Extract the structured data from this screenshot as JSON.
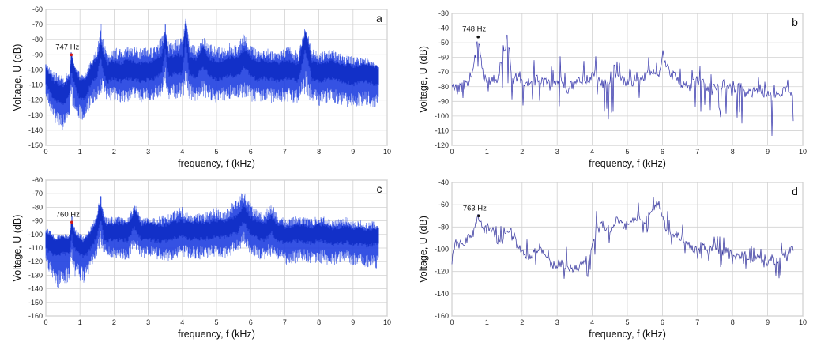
{
  "chart_data": [
    {
      "id": "a",
      "type": "line",
      "panel_letter": "a",
      "xlabel": "frequency, f (kHz)",
      "ylabel": "Voltage, U (dB)",
      "xlim": [
        0,
        10
      ],
      "ylim": [
        -150,
        -60
      ],
      "xticks": [
        0,
        1,
        2,
        3,
        4,
        5,
        6,
        7,
        8,
        9,
        10
      ],
      "yticks": [
        -60,
        -70,
        -80,
        -90,
        -100,
        -110,
        -120,
        -130,
        -140,
        -150
      ],
      "grid": true,
      "color": "#1f3fe0",
      "style": "dense",
      "x_max_data": 9.75,
      "annotation": {
        "text": "747 Hz",
        "x": 0.747,
        "y": -90,
        "marker_color": "#d01818"
      },
      "series": [
        {
          "x": [
            0,
            0.1,
            0.2,
            0.3,
            0.4,
            0.5,
            0.6,
            0.7,
            0.747,
            0.8,
            0.9,
            1.0,
            1.1,
            1.2,
            1.3,
            1.4,
            1.5,
            1.6,
            1.7,
            1.8,
            1.9,
            2.0,
            2.2,
            2.4,
            2.6,
            2.8,
            3.0,
            3.2,
            3.4,
            3.5,
            3.6,
            3.8,
            4.0,
            4.1,
            4.2,
            4.4,
            4.6,
            4.8,
            5.0,
            5.2,
            5.4,
            5.6,
            5.8,
            6.0,
            6.2,
            6.4,
            6.6,
            6.8,
            7.0,
            7.2,
            7.4,
            7.6,
            7.8,
            8.0,
            8.2,
            8.4,
            8.6,
            8.8,
            9.0,
            9.2,
            9.4,
            9.6,
            9.75
          ],
          "y": [
            -102,
            -108,
            -112,
            -114,
            -115,
            -116,
            -114,
            -110,
            -92,
            -100,
            -108,
            -112,
            -113,
            -110,
            -104,
            -100,
            -98,
            -86,
            -96,
            -102,
            -100,
            -100,
            -101,
            -99,
            -100,
            -101,
            -100,
            -99,
            -96,
            -80,
            -98,
            -95,
            -96,
            -73,
            -96,
            -99,
            -91,
            -98,
            -100,
            -99,
            -97,
            -98,
            -92,
            -97,
            -100,
            -99,
            -100,
            -101,
            -99,
            -100,
            -101,
            -80,
            -100,
            -101,
            -100,
            -99,
            -101,
            -102,
            -103,
            -102,
            -101,
            -103,
            -104
          ],
          "low": [
            -118,
            -125,
            -132,
            -138,
            -140,
            -140,
            -136,
            -130,
            -120,
            -125,
            -130,
            -133,
            -134,
            -130,
            -125,
            -122,
            -120,
            -115,
            -118,
            -120,
            -121,
            -120,
            -122,
            -121,
            -120,
            -122,
            -121,
            -120,
            -118,
            -112,
            -120,
            -119,
            -118,
            -115,
            -119,
            -121,
            -118,
            -120,
            -122,
            -121,
            -119,
            -120,
            -118,
            -121,
            -122,
            -121,
            -122,
            -123,
            -121,
            -122,
            -123,
            -116,
            -122,
            -124,
            -123,
            -122,
            -124,
            -125,
            -126,
            -125,
            -124,
            -125,
            -126
          ],
          "high": [
            -95,
            -98,
            -100,
            -102,
            -103,
            -104,
            -102,
            -100,
            -89,
            -92,
            -98,
            -102,
            -103,
            -100,
            -94,
            -90,
            -86,
            -66,
            -82,
            -88,
            -87,
            -85,
            -86,
            -85,
            -84,
            -86,
            -85,
            -84,
            -78,
            -68,
            -82,
            -80,
            -78,
            -64,
            -80,
            -84,
            -78,
            -82,
            -85,
            -84,
            -82,
            -83,
            -76,
            -82,
            -86,
            -85,
            -86,
            -87,
            -84,
            -85,
            -87,
            -70,
            -86,
            -88,
            -87,
            -86,
            -89,
            -90,
            -91,
            -92,
            -92,
            -94,
            -96
          ]
        }
      ]
    },
    {
      "id": "b",
      "type": "line",
      "panel_letter": "b",
      "xlabel": "frequency, f (kHz)",
      "ylabel": "Voltage, U (dB)",
      "xlim": [
        0,
        10
      ],
      "ylim": [
        -120,
        -30
      ],
      "xticks": [
        0,
        1,
        2,
        3,
        4,
        5,
        6,
        7,
        8,
        9,
        10
      ],
      "yticks": [
        -30,
        -40,
        -50,
        -60,
        -70,
        -80,
        -90,
        -100,
        -110,
        -120
      ],
      "grid": true,
      "color": "#2d2da8",
      "style": "sparse",
      "x_max_data": 9.75,
      "annotation": {
        "text": "748 Hz",
        "x": 0.748,
        "y": -46,
        "marker_color": "#111111"
      },
      "series": [
        {
          "x": [
            0,
            0.2,
            0.4,
            0.6,
            0.748,
            0.9,
            1.1,
            1.3,
            1.5,
            1.6,
            1.7,
            1.9,
            2.1,
            2.3,
            2.5,
            2.7,
            2.9,
            3.1,
            3.3,
            3.5,
            3.7,
            3.9,
            4.1,
            4.3,
            4.5,
            4.7,
            4.9,
            5.1,
            5.3,
            5.5,
            5.7,
            5.9,
            6.0,
            6.2,
            6.4,
            6.6,
            6.8,
            7.0,
            7.2,
            7.4,
            7.6,
            7.8,
            8.0,
            8.2,
            8.4,
            8.6,
            8.8,
            9.0,
            9.2,
            9.4,
            9.6,
            9.75
          ],
          "y": [
            -80,
            -82,
            -78,
            -70,
            -46,
            -72,
            -76,
            -74,
            -55,
            -42,
            -78,
            -72,
            -80,
            -76,
            -74,
            -78,
            -80,
            -76,
            -82,
            -78,
            -74,
            -76,
            -72,
            -78,
            -80,
            -74,
            -76,
            -78,
            -72,
            -74,
            -70,
            -76,
            -55,
            -72,
            -74,
            -78,
            -80,
            -76,
            -78,
            -82,
            -80,
            -78,
            -84,
            -80,
            -86,
            -84,
            -82,
            -86,
            -88,
            -84,
            -82,
            -85
          ],
          "low": [
            -86,
            -90,
            -86,
            -80,
            -76,
            -82,
            -86,
            -94,
            -90,
            -86,
            -92,
            -88,
            -98,
            -92,
            -96,
            -100,
            -98,
            -94,
            -100,
            -96,
            -94,
            -102,
            -90,
            -98,
            -110,
            -94,
            -98,
            -96,
            -92,
            -96,
            -90,
            -98,
            -90,
            -94,
            -96,
            -100,
            -102,
            -98,
            -100,
            -106,
            -102,
            -100,
            -114,
            -104,
            -108,
            -110,
            -106,
            -112,
            -116,
            -108,
            -104,
            -110
          ],
          "high": [
            -78,
            -78,
            -74,
            -62,
            -46,
            -66,
            -70,
            -68,
            -48,
            -32,
            -62,
            -56,
            -68,
            -62,
            -58,
            -64,
            -66,
            -56,
            -70,
            -62,
            -60,
            -64,
            -58,
            -66,
            -68,
            -58,
            -62,
            -64,
            -58,
            -62,
            -56,
            -64,
            -40,
            -58,
            -62,
            -64,
            -68,
            -62,
            -64,
            -70,
            -68,
            -64,
            -72,
            -68,
            -76,
            -74,
            -72,
            -76,
            -78,
            -74,
            -72,
            -76
          ]
        }
      ]
    },
    {
      "id": "c",
      "type": "line",
      "panel_letter": "c",
      "xlabel": "frequency, f (kHz)",
      "ylabel": "Voltage, U (dB)",
      "xlim": [
        0,
        10
      ],
      "ylim": [
        -160,
        -60
      ],
      "xticks": [
        0,
        1,
        2,
        3,
        4,
        5,
        6,
        7,
        8,
        9,
        10
      ],
      "yticks": [
        -60,
        -70,
        -80,
        -90,
        -100,
        -110,
        -120,
        -130,
        -140,
        -150,
        -160
      ],
      "grid": true,
      "color": "#1f3fe0",
      "style": "dense",
      "x_max_data": 9.75,
      "annotation": {
        "text": "760 Hz",
        "x": 0.76,
        "y": -91,
        "marker_color": "#d01818"
      },
      "series": [
        {
          "x": [
            0,
            0.1,
            0.2,
            0.3,
            0.4,
            0.5,
            0.6,
            0.7,
            0.76,
            0.8,
            0.9,
            1.0,
            1.1,
            1.2,
            1.3,
            1.4,
            1.5,
            1.6,
            1.7,
            1.8,
            1.9,
            2.0,
            2.2,
            2.4,
            2.6,
            2.8,
            3.0,
            3.2,
            3.4,
            3.6,
            3.8,
            4.0,
            4.2,
            4.4,
            4.6,
            4.8,
            5.0,
            5.2,
            5.4,
            5.6,
            5.8,
            6.0,
            6.2,
            6.4,
            6.6,
            6.8,
            7.0,
            7.2,
            7.4,
            7.6,
            7.8,
            8.0,
            8.2,
            8.4,
            8.6,
            8.8,
            9.0,
            9.2,
            9.4,
            9.6,
            9.75
          ],
          "y": [
            -104,
            -106,
            -108,
            -109,
            -108,
            -107,
            -108,
            -107,
            -92,
            -102,
            -106,
            -108,
            -110,
            -108,
            -104,
            -100,
            -95,
            -82,
            -96,
            -98,
            -97,
            -98,
            -97,
            -98,
            -88,
            -98,
            -97,
            -98,
            -99,
            -98,
            -96,
            -95,
            -97,
            -96,
            -97,
            -96,
            -95,
            -96,
            -94,
            -92,
            -84,
            -93,
            -96,
            -98,
            -92,
            -98,
            -100,
            -99,
            -98,
            -99,
            -100,
            -98,
            -99,
            -101,
            -100,
            -99,
            -101,
            -100,
            -102,
            -101,
            -100
          ],
          "low": [
            -122,
            -128,
            -134,
            -138,
            -140,
            -138,
            -136,
            -134,
            -122,
            -130,
            -132,
            -134,
            -136,
            -134,
            -128,
            -122,
            -116,
            -108,
            -114,
            -116,
            -118,
            -117,
            -118,
            -119,
            -112,
            -118,
            -117,
            -118,
            -119,
            -120,
            -118,
            -117,
            -118,
            -119,
            -118,
            -117,
            -116,
            -118,
            -116,
            -114,
            -108,
            -115,
            -118,
            -120,
            -116,
            -120,
            -122,
            -123,
            -121,
            -120,
            -122,
            -121,
            -122,
            -123,
            -122,
            -121,
            -123,
            -124,
            -125,
            -124,
            -126
          ],
          "high": [
            -95,
            -96,
            -98,
            -100,
            -100,
            -99,
            -100,
            -99,
            -89,
            -92,
            -96,
            -99,
            -101,
            -99,
            -95,
            -90,
            -84,
            -68,
            -86,
            -88,
            -87,
            -87,
            -87,
            -88,
            -76,
            -88,
            -87,
            -88,
            -86,
            -85,
            -82,
            -78,
            -86,
            -84,
            -84,
            -82,
            -80,
            -83,
            -78,
            -72,
            -68,
            -76,
            -82,
            -84,
            -76,
            -86,
            -88,
            -87,
            -86,
            -87,
            -88,
            -86,
            -87,
            -89,
            -88,
            -87,
            -90,
            -89,
            -91,
            -90,
            -92
          ]
        }
      ]
    },
    {
      "id": "d",
      "type": "line",
      "panel_letter": "d",
      "xlabel": "frequency, f (kHz)",
      "ylabel": "Voltage, U (dB)",
      "xlim": [
        0,
        10
      ],
      "ylim": [
        -160,
        -40
      ],
      "xticks": [
        0,
        1,
        2,
        3,
        4,
        5,
        6,
        7,
        8,
        9,
        10
      ],
      "yticks": [
        -40,
        -60,
        -80,
        -100,
        -120,
        -140,
        -160
      ],
      "grid": true,
      "color": "#2d2d9a",
      "style": "sparse",
      "x_max_data": 9.75,
      "annotation": {
        "text": "763 Hz",
        "x": 0.763,
        "y": -70,
        "marker_color": "#111111"
      },
      "series": [
        {
          "x": [
            0,
            0.1,
            0.2,
            0.4,
            0.6,
            0.763,
            0.9,
            1.1,
            1.3,
            1.5,
            1.7,
            1.9,
            2.1,
            2.3,
            2.5,
            2.7,
            2.9,
            3.1,
            3.3,
            3.5,
            3.7,
            3.9,
            4.1,
            4.3,
            4.5,
            4.7,
            4.9,
            5.1,
            5.3,
            5.5,
            5.7,
            5.9,
            6.1,
            6.3,
            6.5,
            6.7,
            6.9,
            7.1,
            7.3,
            7.5,
            7.7,
            7.9,
            8.1,
            8.3,
            8.5,
            8.7,
            8.9,
            9.1,
            9.3,
            9.5,
            9.75
          ],
          "y": [
            -110,
            -95,
            -96,
            -92,
            -86,
            -70,
            -82,
            -80,
            -92,
            -88,
            -84,
            -96,
            -108,
            -104,
            -98,
            -110,
            -114,
            -112,
            -116,
            -118,
            -114,
            -108,
            -84,
            -78,
            -82,
            -74,
            -80,
            -76,
            -70,
            -74,
            -64,
            -60,
            -82,
            -86,
            -90,
            -94,
            -100,
            -96,
            -102,
            -98,
            -104,
            -100,
            -108,
            -104,
            -110,
            -106,
            -114,
            -108,
            -112,
            -104,
            -100
          ],
          "low": [
            -140,
            -105,
            -100,
            -96,
            -92,
            -78,
            -88,
            -90,
            -100,
            -98,
            -96,
            -104,
            -128,
            -118,
            -112,
            -130,
            -134,
            -128,
            -132,
            -136,
            -130,
            -124,
            -110,
            -96,
            -100,
            -94,
            -98,
            -92,
            -88,
            -90,
            -84,
            -80,
            -96,
            -100,
            -104,
            -110,
            -114,
            -108,
            -116,
            -112,
            -118,
            -114,
            -124,
            -118,
            -126,
            -122,
            -130,
            -122,
            -128,
            -116,
            -112
          ],
          "high": [
            -92,
            -90,
            -92,
            -88,
            -82,
            -70,
            -78,
            -74,
            -80,
            -76,
            -72,
            -82,
            -92,
            -88,
            -84,
            -94,
            -96,
            -92,
            -96,
            -100,
            -96,
            -86,
            -64,
            -56,
            -64,
            -54,
            -62,
            -56,
            -52,
            -56,
            -50,
            -52,
            -64,
            -70,
            -74,
            -80,
            -86,
            -82,
            -88,
            -84,
            -90,
            -84,
            -94,
            -88,
            -96,
            -90,
            -100,
            -92,
            -98,
            -84,
            -86
          ]
        }
      ]
    }
  ]
}
